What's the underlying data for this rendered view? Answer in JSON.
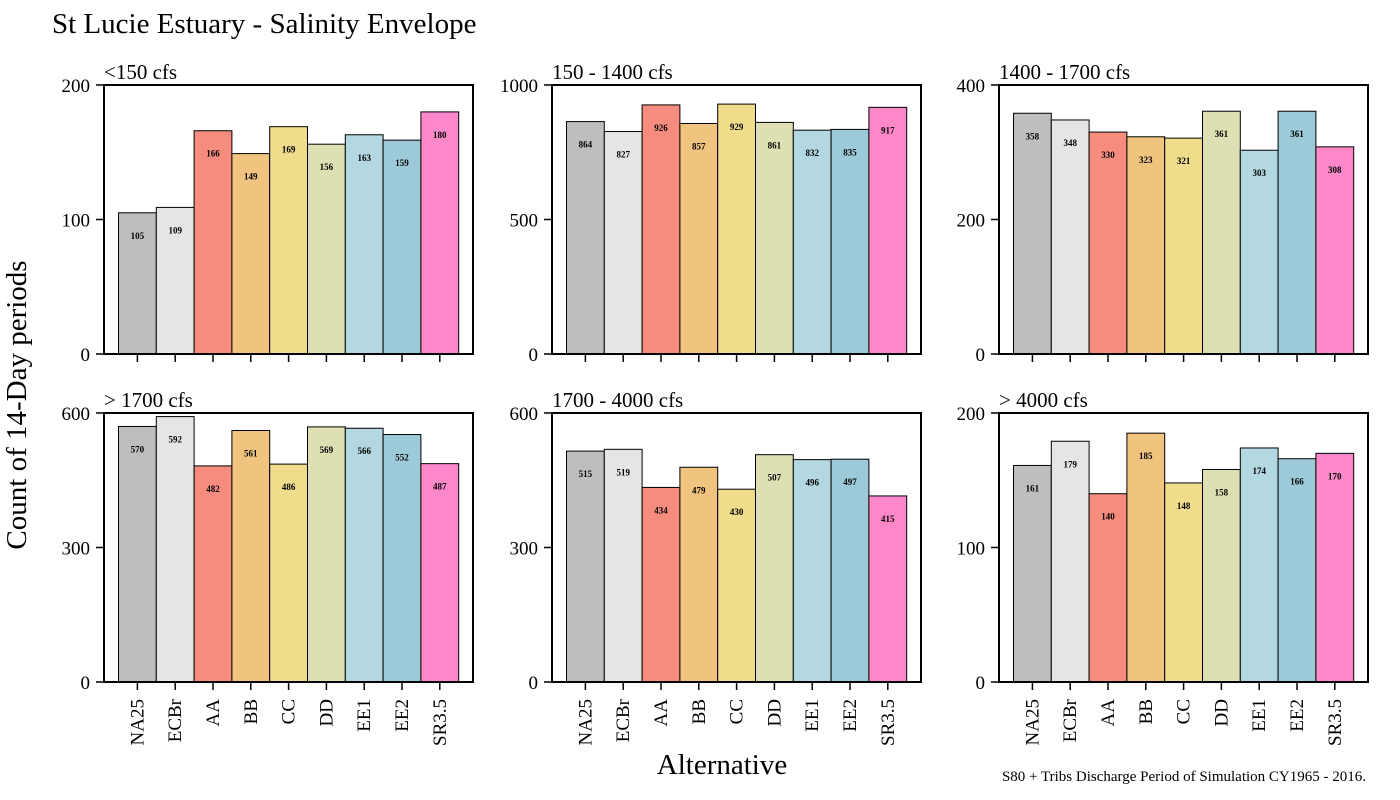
{
  "title": "St Lucie Estuary - Salinity Envelope",
  "ylabel": "Count of 14-Day periods",
  "xlabel": "Alternative",
  "caption": "S80 + Tribs Discharge Period of Simulation CY1965 - 2016.",
  "colors": {
    "NA25": "#BEBEBE",
    "ECBr": "#E5E5E5",
    "AA": "#F68C7E",
    "BB": "#F0C47F",
    "CC": "#EFDD8C",
    "DD": "#DEE0B4",
    "EE1": "#B3D8E1",
    "EE2": "#9DCAD8",
    "SR3.5": "#FC88CA"
  },
  "chart_data": [
    {
      "type": "bar",
      "title": "<150 cfs",
      "categories": [
        "NA25",
        "ECBr",
        "AA",
        "BB",
        "CC",
        "DD",
        "EE1",
        "EE2",
        "SR3.5"
      ],
      "values": [
        105,
        109,
        166,
        149,
        169,
        156,
        163,
        159,
        180
      ],
      "ylim": [
        0,
        200
      ],
      "yticks": [
        0,
        100,
        200
      ]
    },
    {
      "type": "bar",
      "title": "150 - 1400 cfs",
      "categories": [
        "NA25",
        "ECBr",
        "AA",
        "BB",
        "CC",
        "DD",
        "EE1",
        "EE2",
        "SR3.5"
      ],
      "values": [
        864,
        827,
        926,
        857,
        929,
        861,
        832,
        835,
        917
      ],
      "ylim": [
        0,
        1000
      ],
      "yticks": [
        0,
        500,
        1000
      ]
    },
    {
      "type": "bar",
      "title": "1400 - 1700 cfs",
      "categories": [
        "NA25",
        "ECBr",
        "AA",
        "BB",
        "CC",
        "DD",
        "EE1",
        "EE2",
        "SR3.5"
      ],
      "values": [
        358,
        348,
        330,
        323,
        321,
        361,
        303,
        361,
        308
      ],
      "ylim": [
        0,
        400
      ],
      "yticks": [
        0,
        200,
        400
      ]
    },
    {
      "type": "bar",
      "title": "> 1700 cfs",
      "categories": [
        "NA25",
        "ECBr",
        "AA",
        "BB",
        "CC",
        "DD",
        "EE1",
        "EE2",
        "SR3.5"
      ],
      "values": [
        570,
        592,
        482,
        561,
        486,
        569,
        566,
        552,
        487
      ],
      "ylim": [
        0,
        600
      ],
      "yticks": [
        0,
        300,
        600
      ]
    },
    {
      "type": "bar",
      "title": "1700 - 4000 cfs",
      "categories": [
        "NA25",
        "ECBr",
        "AA",
        "BB",
        "CC",
        "DD",
        "EE1",
        "EE2",
        "SR3.5"
      ],
      "values": [
        515,
        519,
        434,
        479,
        430,
        507,
        496,
        497,
        415
      ],
      "ylim": [
        0,
        600
      ],
      "yticks": [
        0,
        300,
        600
      ]
    },
    {
      "type": "bar",
      "title": "> 4000 cfs",
      "categories": [
        "NA25",
        "ECBr",
        "AA",
        "BB",
        "CC",
        "DD",
        "EE1",
        "EE2",
        "SR3.5"
      ],
      "values": [
        161,
        179,
        140,
        185,
        148,
        158,
        174,
        166,
        170
      ],
      "ylim": [
        0,
        200
      ],
      "yticks": [
        0,
        100,
        200
      ]
    }
  ]
}
